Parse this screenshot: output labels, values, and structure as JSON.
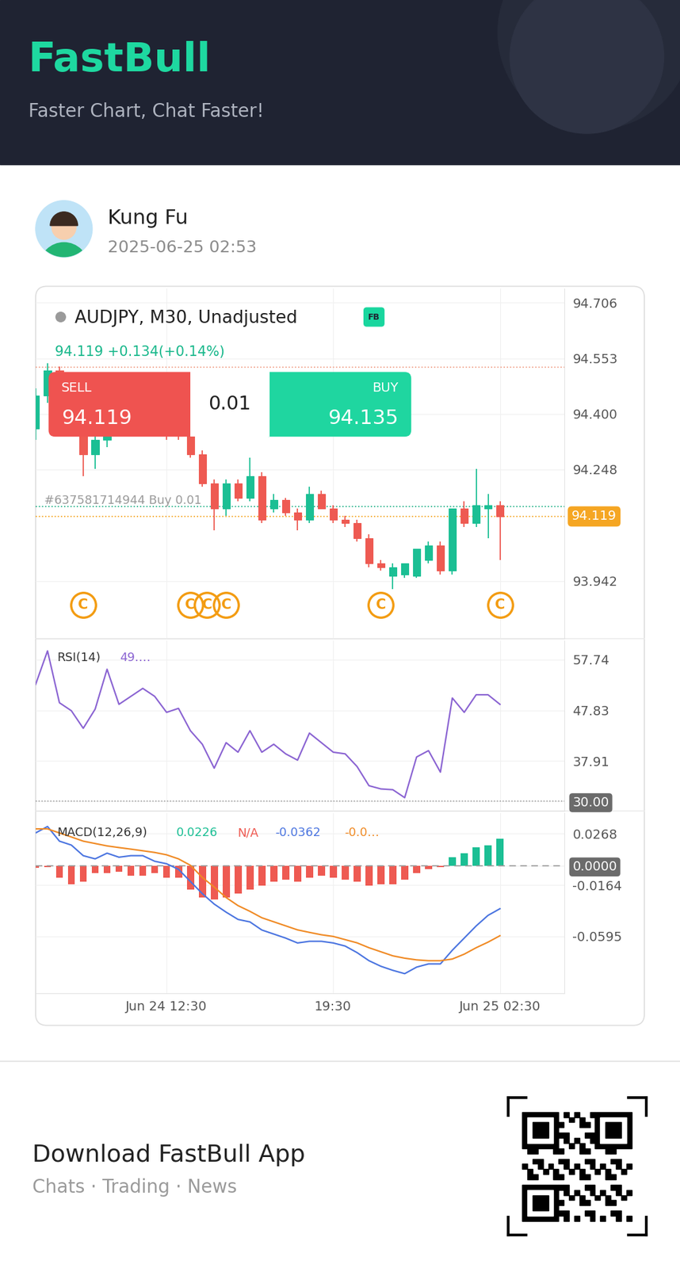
{
  "header": {
    "brand": "FastBull",
    "slogan": "Faster Chart, Chat Faster!"
  },
  "post": {
    "user": "Kung Fu",
    "time": "2025-06-25 02:53"
  },
  "footer": {
    "title": "Download FastBull App",
    "subtitle": "Chats · Trading · News"
  },
  "chart_data": [
    {
      "type": "candlestick",
      "title": "AUDJPY, M30, Unadjusted",
      "badge": "FB",
      "quote": "94.119 +0.134(+0.14%)",
      "trade": {
        "sell_label": "SELL",
        "sell": 94.119,
        "lot": 0.01,
        "buy_label": "BUY",
        "buy": 94.135
      },
      "categories": [
        null,
        null,
        null,
        null,
        null,
        null,
        null,
        null,
        null,
        null,
        null,
        "Jun 24 12:30",
        null,
        null,
        null,
        null,
        null,
        null,
        null,
        null,
        null,
        null,
        null,
        null,
        null,
        "19:30",
        null,
        null,
        null,
        null,
        null,
        null,
        null,
        null,
        null,
        null,
        null,
        null,
        null,
        "Jun 25 02:30"
      ],
      "open": [
        94.36,
        94.45,
        94.52,
        94.46,
        94.36,
        94.29,
        94.33,
        94.38,
        94.42,
        94.36,
        94.4,
        94.38,
        94.37,
        94.34,
        94.29,
        94.21,
        94.14,
        94.21,
        94.17,
        94.23,
        94.14,
        94.165,
        94.13,
        94.11,
        94.18,
        94.14,
        94.11,
        94.1,
        94.06,
        93.99,
        93.955,
        93.96,
        93.955,
        94.0,
        94.04,
        93.97,
        94.14,
        94.1,
        94.14,
        94.15
      ],
      "high": [
        94.47,
        94.54,
        94.53,
        94.48,
        94.38,
        94.34,
        94.4,
        94.44,
        94.44,
        94.41,
        94.43,
        94.4,
        94.38,
        94.35,
        94.3,
        94.22,
        94.22,
        94.22,
        94.28,
        94.24,
        94.18,
        94.17,
        94.14,
        94.2,
        94.19,
        94.15,
        94.12,
        94.11,
        94.07,
        94.0,
        93.99,
        93.99,
        94.03,
        94.05,
        94.05,
        94.14,
        94.16,
        94.25,
        94.18,
        94.16
      ],
      "low": [
        94.33,
        94.43,
        94.44,
        94.34,
        94.23,
        94.25,
        94.31,
        94.36,
        94.34,
        94.35,
        94.36,
        94.33,
        94.33,
        94.28,
        94.2,
        94.08,
        94.12,
        94.16,
        94.16,
        94.1,
        94.13,
        94.12,
        94.08,
        94.1,
        94.14,
        94.1,
        94.09,
        94.05,
        93.98,
        93.97,
        93.92,
        93.95,
        93.95,
        93.99,
        93.96,
        93.96,
        94.09,
        94.09,
        94.06,
        94.0
      ],
      "close": [
        94.45,
        94.52,
        94.46,
        94.36,
        94.29,
        94.33,
        94.38,
        94.42,
        94.36,
        94.4,
        94.38,
        94.37,
        94.34,
        94.29,
        94.21,
        94.14,
        94.21,
        94.17,
        94.23,
        94.11,
        94.165,
        94.13,
        94.11,
        94.18,
        94.14,
        94.11,
        94.1,
        94.06,
        93.99,
        93.98,
        93.98,
        93.99,
        94.03,
        94.04,
        93.97,
        94.14,
        94.1,
        94.15,
        94.15,
        94.119
      ],
      "last_price": 94.119,
      "lines": [
        {
          "value": 94.529,
          "color": "#f0a088"
        },
        {
          "value": 94.147,
          "color": "#26b38a",
          "label": "#637581714944 Buy 0.01"
        }
      ],
      "events": {
        "label": "C",
        "x": [
          4,
          13,
          14.4,
          16,
          29,
          39
        ]
      },
      "xlim": [
        0,
        44.4
      ],
      "ylim": [
        93.783,
        94.744
      ],
      "yticks": [
        93.942,
        94.248,
        {
          "value": 94.4,
          "label": "94.400"
        },
        94.553,
        94.706
      ],
      "grid": true,
      "tick_labels": "y"
    },
    {
      "type": "line",
      "title": "RSI(14)",
      "readouts": [
        {
          "text": "49.…",
          "color": "#8a63d2"
        }
      ],
      "categories": [
        null,
        null,
        null,
        null,
        null,
        null,
        null,
        null,
        null,
        null,
        null,
        "Jun 24 12:30",
        null,
        null,
        null,
        null,
        null,
        null,
        null,
        null,
        null,
        null,
        null,
        null,
        null,
        "19:30",
        null,
        null,
        null,
        null,
        null,
        null,
        null,
        null,
        null,
        null,
        null,
        null,
        null,
        "Jun 25 02:30"
      ],
      "series": [
        {
          "type": "line",
          "color": "#8a63d2",
          "values": [
            52.9,
            59.46,
            49.31,
            47.75,
            44.31,
            48.06,
            55.87,
            49.0,
            50.56,
            52.12,
            50.56,
            47.43,
            48.21,
            43.84,
            41.19,
            36.5,
            41.5,
            39.63,
            43.84,
            39.63,
            41.19,
            39.31,
            38.07,
            43.37,
            41.5,
            39.63,
            39.31,
            36.82,
            33.07,
            32.44,
            32.29,
            30.73,
            38.69,
            39.94,
            35.72,
            50.24,
            47.43,
            50.87,
            50.87,
            49.0
          ]
        }
      ],
      "reference_line": {
        "value": 30,
        "line_style": "dotted"
      },
      "xlim": [
        0,
        44.4
      ],
      "ylim": [
        28.1,
        61.5
      ],
      "yticks": [
        57.74,
        47.83,
        37.91,
        {
          "value": 30,
          "label": "30.00"
        }
      ],
      "grid": true,
      "tick_labels": "y"
    },
    {
      "type": "combo",
      "title": "MACD(12,26,9)",
      "readouts": [
        {
          "text": "0.0226",
          "color": "#1bbf94"
        },
        {
          "text": "N/A",
          "color": "#ee5a52"
        },
        {
          "text": "-0.0362",
          "color": "#4a74e0"
        },
        {
          "text": "-0.0…",
          "color": "#f08a24"
        }
      ],
      "categories": [
        null,
        null,
        null,
        null,
        null,
        null,
        null,
        null,
        null,
        null,
        null,
        "Jun 24 12:30",
        null,
        null,
        null,
        null,
        null,
        null,
        null,
        null,
        null,
        null,
        null,
        null,
        null,
        "19:30",
        null,
        null,
        null,
        null,
        null,
        null,
        null,
        null,
        null,
        null,
        null,
        null,
        null,
        "Jun 25 02:30"
      ],
      "series": [
        {
          "type": "bar",
          "values": [
            -0.0018,
            -0.0011,
            -0.0099,
            -0.0154,
            -0.0133,
            -0.0065,
            -0.0065,
            -0.0052,
            -0.0086,
            -0.0086,
            -0.0065,
            -0.0099,
            -0.0099,
            -0.0201,
            -0.0268,
            -0.0282,
            -0.0268,
            -0.0235,
            -0.0201,
            -0.0167,
            -0.0133,
            -0.0119,
            -0.0133,
            -0.0099,
            -0.0086,
            -0.0099,
            -0.0119,
            -0.0133,
            -0.0167,
            -0.0154,
            -0.0154,
            -0.0119,
            -0.0065,
            -0.0031,
            -0.0011,
            0.0071,
            0.0105,
            0.0152,
            0.0173,
            0.0226
          ]
        },
        {
          "type": "line",
          "color": "#4a74e0",
          "values": [
            0.0275,
            0.0329,
            0.0206,
            0.0173,
            0.0084,
            0.0057,
            0.0105,
            0.0071,
            0.0084,
            0.0084,
            0.0037,
            0.0016,
            -0.0031,
            -0.0133,
            -0.0235,
            -0.0323,
            -0.0391,
            -0.0452,
            -0.0473,
            -0.0541,
            -0.0575,
            -0.0609,
            -0.065,
            -0.0636,
            -0.0636,
            -0.065,
            -0.0676,
            -0.0731,
            -0.0799,
            -0.0846,
            -0.088,
            -0.0908,
            -0.0853,
            -0.0826,
            -0.0826,
            -0.0711,
            -0.0609,
            -0.0507,
            -0.0418,
            -0.0362
          ]
        },
        {
          "type": "line",
          "color": "#f08a24",
          "values": [
            0.0309,
            0.0309,
            0.0275,
            0.0241,
            0.0206,
            0.0186,
            0.0166,
            0.0152,
            0.0139,
            0.0125,
            0.0111,
            0.0091,
            0.0057,
            0.0003,
            -0.0099,
            -0.018,
            -0.0268,
            -0.0336,
            -0.0384,
            -0.0438,
            -0.0472,
            -0.0506,
            -0.054,
            -0.0561,
            -0.0581,
            -0.0595,
            -0.0622,
            -0.0649,
            -0.069,
            -0.0724,
            -0.0758,
            -0.0778,
            -0.0792,
            -0.0799,
            -0.0799,
            -0.0785,
            -0.0744,
            -0.069,
            -0.0643,
            -0.0589
          ]
        }
      ],
      "reference_line": {
        "value": 0,
        "line_style": "dashed"
      },
      "xlim": [
        0,
        44.4
      ],
      "ylim": [
        -0.1071,
        0.0445
      ],
      "yticks": [
        0.0268,
        {
          "value": 0,
          "label": "0.0000"
        },
        -0.0164,
        -0.0595
      ],
      "grid": true
    }
  ]
}
